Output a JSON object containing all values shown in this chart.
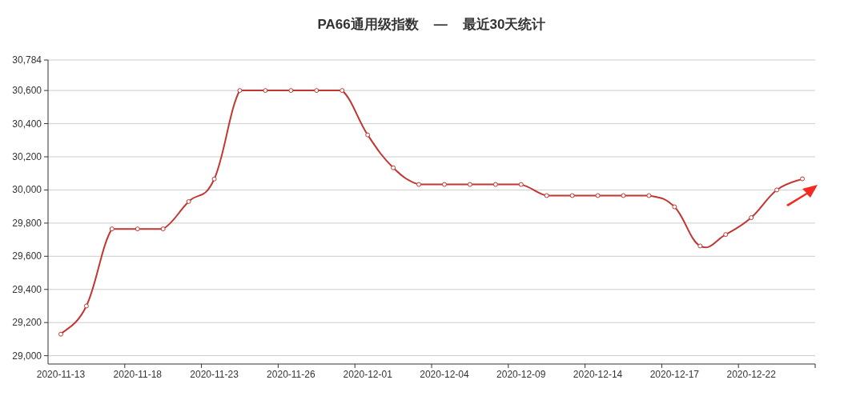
{
  "chart_data": {
    "type": "line",
    "title": "PA66通用级指数    —    最近30天统计",
    "categories": [
      "2020-11-13",
      null,
      null,
      "2020-11-18",
      null,
      null,
      "2020-11-23",
      null,
      null,
      "2020-11-26",
      null,
      null,
      "2020-12-01",
      null,
      null,
      "2020-12-04",
      null,
      null,
      "2020-12-09",
      null,
      null,
      "2020-12-14",
      null,
      null,
      "2020-12-17",
      null,
      null,
      "2020-12-22",
      null,
      null
    ],
    "series": [
      {
        "color": "#c23531",
        "values": [
          29130,
          29300,
          29765,
          29765,
          29765,
          29930,
          30066,
          30600,
          30600,
          30600,
          30600,
          30600,
          30332,
          30134,
          30033,
          30033,
          30033,
          30033,
          30033,
          29966,
          29966,
          29966,
          29966,
          29966,
          29898,
          29662,
          29731,
          29833,
          30000,
          30067
        ]
      }
    ],
    "ylim": [
      28950,
      30784
    ],
    "yticks": [
      {
        "value": 29000,
        "label": "29,000"
      },
      {
        "value": 29200,
        "label": "29,200"
      },
      {
        "value": 29400,
        "label": "29,400"
      },
      {
        "value": 29600,
        "label": "29,600"
      },
      {
        "value": 29800,
        "label": "29,800"
      },
      {
        "value": 30000,
        "label": "30,000"
      },
      {
        "value": 30200,
        "label": "30,200"
      },
      {
        "value": 30400,
        "label": "30,400"
      },
      {
        "value": 30600,
        "label": "30,600"
      },
      {
        "value": 30784,
        "label": "30,784"
      }
    ],
    "grid": "y",
    "marker": "circle",
    "line_style": "solid"
  }
}
